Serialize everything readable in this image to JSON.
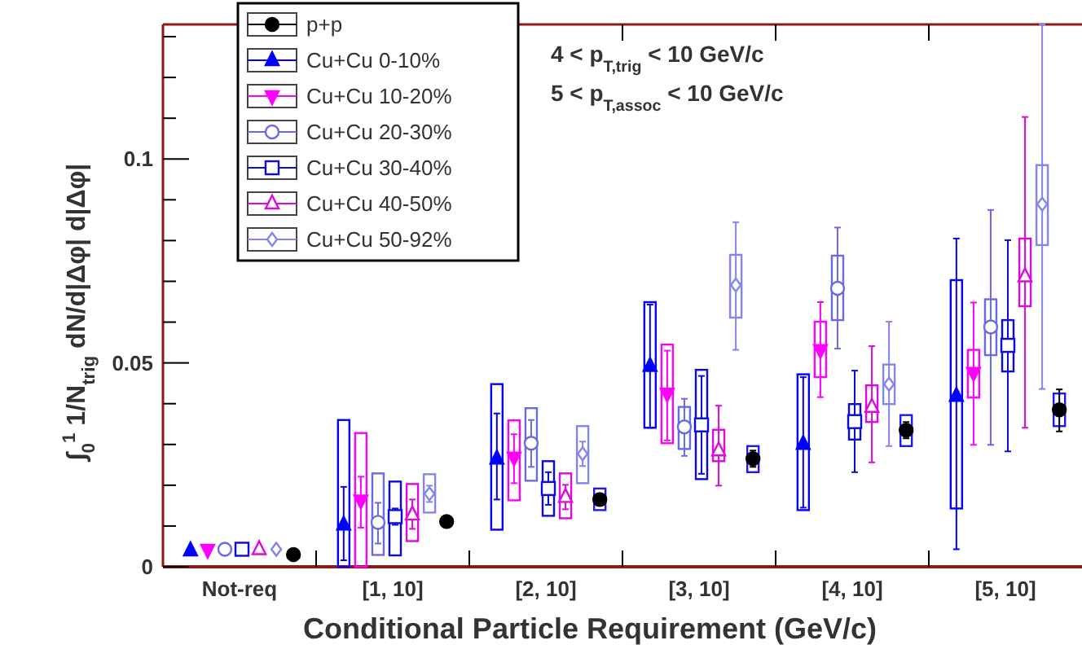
{
  "chart_data": {
    "type": "scatter",
    "xlabel": "Conditional Particle Requirement (GeV/c)",
    "ylabel": "∫$_{0}$$^{1}$ 1/N$_{trig}$ dN/d|Δφ| d|Δφ|",
    "annotations": [
      "4 < p$_{T,trig}$ < 10 GeV/c",
      "5 < p$_{T,assoc}$ < 10 GeV/c"
    ],
    "categories": [
      "Not-req",
      "[1, 10]",
      "[2, 10]",
      "[3, 10]",
      "[4, 10]",
      "[5, 10]"
    ],
    "ylim": [
      0,
      0.133
    ],
    "yticks": [
      0,
      {
        "value": 0.01,
        "label": null
      },
      {
        "value": 0.02,
        "label": null
      },
      {
        "value": 0.03,
        "label": null
      },
      {
        "value": 0.04,
        "label": null
      },
      0.05,
      {
        "value": 0.06,
        "label": null
      },
      {
        "value": 0.07,
        "label": null
      },
      {
        "value": 0.08,
        "label": null
      },
      {
        "value": 0.09,
        "label": null
      },
      0.1,
      {
        "value": 0.11,
        "label": null
      },
      {
        "value": 0.12,
        "label": null
      },
      {
        "value": 0.13,
        "label": null
      }
    ],
    "legend": "top left",
    "series": [
      {
        "name": "p+p",
        "color": "#000000",
        "marker": "circle",
        "values": [
          0.003,
          0.0111,
          0.0165,
          0.0265,
          0.0335,
          0.0385
        ],
        "errors": [
          null,
          [
            0.0101,
            0.0121
          ],
          [
            0.0155,
            0.0175
          ],
          [
            0.0245,
            0.0285
          ],
          [
            0.0315,
            0.0355
          ],
          [
            0.0332,
            0.0435
          ]
        ]
      },
      {
        "type": "bar",
        "color": "#1a1af5",
        "base": [
          null,
          null,
          0.0139,
          0.0232,
          0.0296,
          0.0345
        ],
        "values": [
          null,
          null,
          0.0053,
          0.0064,
          0.0076,
          0.008
        ]
      },
      {
        "name": "Cu+Cu 0-10%",
        "color": "#0000ff",
        "marker": "triangle",
        "values": [
          0.004,
          0.0103,
          0.0265,
          0.0492,
          0.0301,
          0.0419
        ],
        "errors": [
          null,
          [
            0.0016,
            0.0196
          ],
          [
            0.0165,
            0.0376
          ],
          [
            0.0341,
            0.0643
          ],
          [
            0.0145,
            0.0465
          ],
          [
            0.0043,
            0.0805
          ]
        ]
      },
      {
        "type": "bar",
        "color": "#0000ff",
        "base": [
          null,
          0,
          0.0091,
          0.0341,
          0.0139,
          0.0143
        ],
        "values": [
          null,
          0.036,
          0.0357,
          0.0308,
          0.0333,
          0.056
        ]
      },
      {
        "name": "Cu+Cu 10-20%",
        "color": "#ff00ff",
        "marker": "triangle-down",
        "values": [
          0.0042,
          0.0163,
          0.0268,
          0.0425,
          0.0532,
          0.0476
        ],
        "errors": [
          null,
          [
            0.0096,
            0.0221
          ],
          [
            0.0205,
            0.0325
          ],
          [
            0.031,
            0.053
          ],
          [
            0.0416,
            0.0649
          ],
          [
            0.0299,
            0.0648
          ]
        ]
      },
      {
        "type": "bar",
        "color": "#ff00ff",
        "base": [
          null,
          0,
          0.0163,
          0.0303,
          0.0465,
          0.0415
        ],
        "values": [
          null,
          0.0328,
          0.0196,
          0.0242,
          0.0136,
          0.0117
        ]
      },
      {
        "name": "Cu+Cu 20-30%",
        "color": "#6a6ae6",
        "marker": "circle-open",
        "values": [
          0.0043,
          0.0109,
          0.0303,
          0.0343,
          0.0683,
          0.0588
        ],
        "errors": [
          null,
          [
            0.0057,
            0.0157
          ],
          [
            0.0245,
            0.036
          ],
          [
            0.0272,
            0.0412
          ],
          [
            0.0535,
            0.0832
          ],
          [
            0.0299,
            0.0875
          ]
        ]
      },
      {
        "type": "bar",
        "color": "#6a6ae6",
        "base": [
          null,
          0.0029,
          0.0211,
          0.0289,
          0.0605,
          0.0519
        ],
        "values": [
          null,
          0.02,
          0.0178,
          0.0103,
          0.0158,
          0.0137
        ]
      },
      {
        "name": "Cu+Cu 30-40%",
        "color": "#0a0ae0",
        "marker": "square-open",
        "values": [
          0.0043,
          0.0123,
          0.0192,
          0.0348,
          0.0356,
          0.0543
        ],
        "errors": [
          null,
          [
            0.0103,
            0.0143
          ],
          [
            0.0152,
            0.0232
          ],
          [
            0.0228,
            0.0468
          ],
          [
            0.0232,
            0.0481
          ],
          [
            0.0283,
            0.0801
          ]
        ]
      },
      {
        "type": "bar",
        "color": "#0a0ae0",
        "base": [
          null,
          0.0028,
          0.0125,
          0.0215,
          0.0312,
          0.0479
        ],
        "values": [
          null,
          0.0181,
          0.0134,
          0.0268,
          0.0087,
          0.0126
        ]
      },
      {
        "name": "Cu+Cu 40-50%",
        "color": "#dc0adc",
        "marker": "triangle-open",
        "values": [
          0.0043,
          0.0128,
          0.0171,
          0.0285,
          0.0392,
          0.0712
        ],
        "errors": [
          null,
          [
            0.0093,
            0.0165
          ],
          [
            0.0141,
            0.0201
          ],
          [
            0.0199,
            0.0395
          ],
          [
            0.0256,
            0.0541
          ],
          [
            0.0341,
            0.1103
          ]
        ]
      },
      {
        "type": "bar",
        "color": "#dc0adc",
        "base": [
          null,
          0.0063,
          0.0119,
          0.0259,
          0.0355,
          0.0639
        ],
        "values": [
          null,
          0.014,
          0.011,
          0.0077,
          0.009,
          0.0166
        ]
      },
      {
        "name": "Cu+Cu 50-92%",
        "color": "#8484ee",
        "marker": "diamond-open",
        "values": [
          0.0043,
          0.0179,
          0.0277,
          0.0691,
          0.0448,
          0.0889
        ],
        "errors": [
          null,
          [
            0.0159,
            0.0199
          ],
          [
            0.0247,
            0.0307
          ],
          [
            0.0532,
            0.0845
          ],
          [
            0.0296,
            0.0601
          ],
          [
            0.0436,
            0.133
          ]
        ]
      },
      {
        "type": "bar",
        "color": "#8484ee",
        "base": [
          null,
          0.0133,
          0.0205,
          0.0611,
          0.0399,
          0.0789
        ],
        "values": [
          null,
          0.0094,
          0.014,
          0.0154,
          0.0097,
          0.0196
        ]
      }
    ]
  }
}
